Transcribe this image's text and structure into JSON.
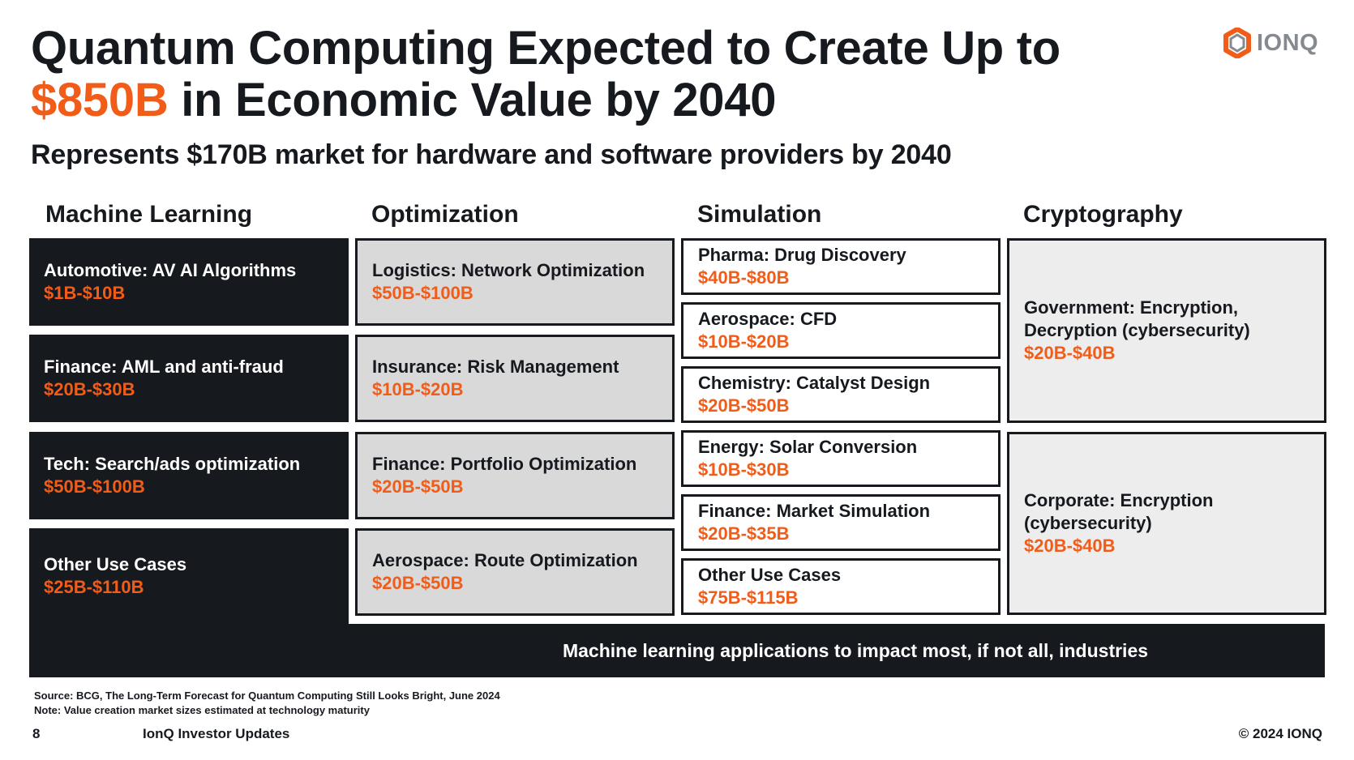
{
  "title": {
    "line1": "Quantum Computing Expected to Create Up to",
    "highlight": "$850B",
    "line2_rest": " in Economic Value by 2040"
  },
  "subtitle": "Represents $170B market for hardware and software providers by 2040",
  "logo": {
    "icon": "ionq-hexagon-logo-icon",
    "text": "IONQ",
    "colors": {
      "orange": "#f25c19",
      "gray": "#858a91"
    }
  },
  "colors": {
    "accent": "#f25c19",
    "dark": "#16191e",
    "gray_box": "#d9d9d9"
  },
  "columns": {
    "machine_learning": {
      "heading": "Machine Learning",
      "items": [
        {
          "label": "Automotive: AV AI Algorithms",
          "value": "$1B-$10B"
        },
        {
          "label": "Finance: AML and anti-fraud",
          "value": "$20B-$30B"
        },
        {
          "label": "Tech: Search/ads optimization",
          "value": "$50B-$100B"
        },
        {
          "label": "Other Use Cases",
          "value": "$25B-$110B"
        }
      ]
    },
    "optimization": {
      "heading": "Optimization",
      "items": [
        {
          "label": "Logistics: Network Optimization",
          "value": "$50B-$100B"
        },
        {
          "label": "Insurance: Risk Management",
          "value": "$10B-$20B"
        },
        {
          "label": "Finance: Portfolio Optimization",
          "value": "$20B-$50B"
        },
        {
          "label": "Aerospace: Route Optimization",
          "value": "$20B-$50B"
        }
      ]
    },
    "simulation": {
      "heading": "Simulation",
      "items": [
        {
          "label": "Pharma: Drug Discovery",
          "value": "$40B-$80B"
        },
        {
          "label": "Aerospace: CFD",
          "value": "$10B-$20B"
        },
        {
          "label": "Chemistry: Catalyst Design",
          "value": "$20B-$50B"
        },
        {
          "label": "Energy: Solar Conversion",
          "value": "$10B-$30B"
        },
        {
          "label": "Finance: Market Simulation",
          "value": "$20B-$35B"
        },
        {
          "label": "Other Use Cases",
          "value": "$75B-$115B"
        }
      ]
    },
    "cryptography": {
      "heading": "Cryptography",
      "items": [
        {
          "label_line1": "Government: Encryption,",
          "label_line2": "Decryption (cybersecurity)",
          "value": "$20B-$40B"
        },
        {
          "label_line1": "Corporate: Encryption",
          "label_line2": "(cybersecurity)",
          "value": "$20B-$40B"
        }
      ]
    }
  },
  "banner": "Machine learning applications to impact most, if not all, industries",
  "source_lines": [
    "Source: BCG, The Long-Term Forecast for Quantum Computing Still Looks Bright, June 2024",
    "Note: Value creation market sizes estimated at technology maturity"
  ],
  "footer": {
    "page_number": "8",
    "center": "IonQ Investor Updates",
    "right": "© 2024 IONQ"
  }
}
